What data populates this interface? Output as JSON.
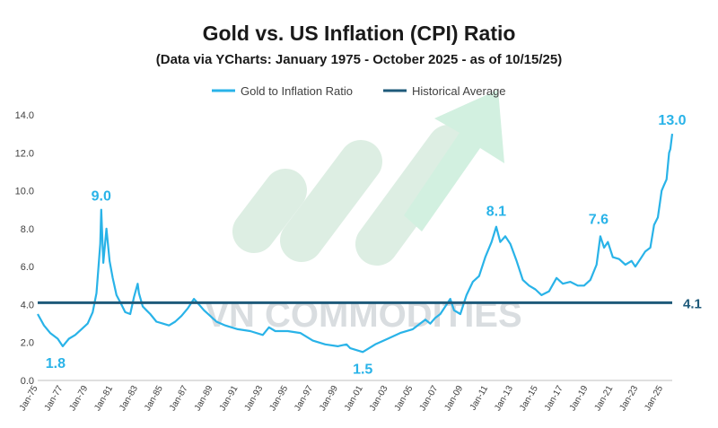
{
  "chart_data": {
    "type": "line",
    "title": "Gold vs. US Inflation (CPI) Ratio",
    "subtitle": "(Data via YCharts: January 1975 - October 2025 - as of 10/15/25)",
    "xlabel": "",
    "ylabel": "",
    "ylim": [
      0,
      14
    ],
    "yticks": [
      "0.0",
      "2.0",
      "4.0",
      "6.0",
      "8.0",
      "10.0",
      "12.0",
      "14.0"
    ],
    "xticks": [
      "Jan-75",
      "Jan-77",
      "Jan-79",
      "Jan-81",
      "Jan-83",
      "Jan-85",
      "Jan-87",
      "Jan-89",
      "Jan-91",
      "Jan-93",
      "Jan-95",
      "Jan-97",
      "Jan-99",
      "Jan-01",
      "Jan-03",
      "Jan-05",
      "Jan-07",
      "Jan-09",
      "Jan-11",
      "Jan-13",
      "Jan-15",
      "Jan-17",
      "Jan-19",
      "Jan-21",
      "Jan-23",
      "Jan-25"
    ],
    "grid": false,
    "legend_position": "top",
    "watermark": "VN COMMODITIES",
    "colors": {
      "ratio": "#29b3e8",
      "average": "#1e5a7a",
      "arrow": "#d2f0e0",
      "bars": "#ddeee3"
    },
    "series": [
      {
        "name": "Gold to Inflation Ratio",
        "x": [
          1975.0,
          1975.5,
          1976.0,
          1976.6,
          1977.0,
          1977.5,
          1978.0,
          1978.5,
          1979.0,
          1979.4,
          1979.7,
          1980.0,
          1980.08,
          1980.25,
          1980.5,
          1980.75,
          1981.0,
          1981.3,
          1981.7,
          1982.0,
          1982.4,
          1982.7,
          1983.0,
          1983.1,
          1983.4,
          1983.7,
          1984.0,
          1984.5,
          1985.0,
          1985.5,
          1986.0,
          1986.5,
          1987.0,
          1987.5,
          1987.9,
          1988.3,
          1988.8,
          1989.3,
          1990.0,
          1990.5,
          1991.0,
          1992.0,
          1993.0,
          1993.5,
          1994.0,
          1995.0,
          1996.0,
          1997.0,
          1998.0,
          1999.0,
          1999.7,
          2000.0,
          2000.5,
          2001.0,
          2001.5,
          2002.0,
          2003.0,
          2004.0,
          2005.0,
          2006.0,
          2006.4,
          2006.8,
          2007.2,
          2008.0,
          2008.3,
          2008.8,
          2009.3,
          2009.8,
          2010.3,
          2010.8,
          2011.3,
          2011.67,
          2012.0,
          2012.4,
          2012.8,
          2013.3,
          2013.8,
          2014.3,
          2014.8,
          2015.3,
          2015.9,
          2016.5,
          2017.0,
          2017.6,
          2018.2,
          2018.7,
          2019.2,
          2019.7,
          2020.0,
          2020.3,
          2020.6,
          2021.0,
          2021.5,
          2022.0,
          2022.5,
          2022.8,
          2023.2,
          2023.6,
          2024.0,
          2024.3,
          2024.6,
          2024.9,
          2025.1,
          2025.3,
          2025.5,
          2025.6,
          2025.75
        ],
        "values": [
          3.5,
          2.9,
          2.5,
          2.2,
          1.8,
          2.2,
          2.4,
          2.7,
          3.0,
          3.6,
          4.6,
          7.2,
          9.0,
          6.2,
          8.0,
          6.3,
          5.4,
          4.5,
          4.0,
          3.6,
          3.5,
          4.4,
          5.1,
          4.6,
          3.9,
          3.7,
          3.5,
          3.1,
          3.0,
          2.9,
          3.1,
          3.4,
          3.8,
          4.3,
          4.0,
          3.7,
          3.4,
          3.1,
          2.9,
          2.8,
          2.7,
          2.6,
          2.4,
          2.8,
          2.6,
          2.6,
          2.5,
          2.1,
          1.9,
          1.8,
          1.9,
          1.7,
          1.6,
          1.5,
          1.7,
          1.9,
          2.2,
          2.5,
          2.7,
          3.2,
          3.0,
          3.3,
          3.5,
          4.3,
          3.7,
          3.5,
          4.5,
          5.2,
          5.5,
          6.5,
          7.3,
          8.1,
          7.3,
          7.6,
          7.2,
          6.3,
          5.3,
          5.0,
          4.8,
          4.5,
          4.7,
          5.4,
          5.1,
          5.2,
          5.0,
          5.0,
          5.3,
          6.1,
          7.6,
          7.0,
          7.3,
          6.5,
          6.4,
          6.1,
          6.3,
          6.0,
          6.4,
          6.8,
          7.0,
          8.2,
          8.6,
          10.0,
          10.3,
          10.6,
          12.0,
          12.2,
          13.0
        ]
      },
      {
        "name": "Historical Average",
        "x": [
          1975.0,
          2025.75
        ],
        "values": [
          4.1,
          4.1
        ]
      }
    ],
    "annotations": [
      {
        "text": "1.8",
        "x": 1977.0,
        "y": 1.8
      },
      {
        "text": "9.0",
        "x": 1980.08,
        "y": 9.0
      },
      {
        "text": "1.5",
        "x": 2001.0,
        "y": 1.5
      },
      {
        "text": "8.1",
        "x": 2011.67,
        "y": 8.1
      },
      {
        "text": "7.6",
        "x": 2020.0,
        "y": 7.6
      },
      {
        "text": "13.0",
        "x": 2025.75,
        "y": 13.0
      },
      {
        "text": "4.1",
        "x": 2025.75,
        "y": 4.1
      }
    ]
  }
}
